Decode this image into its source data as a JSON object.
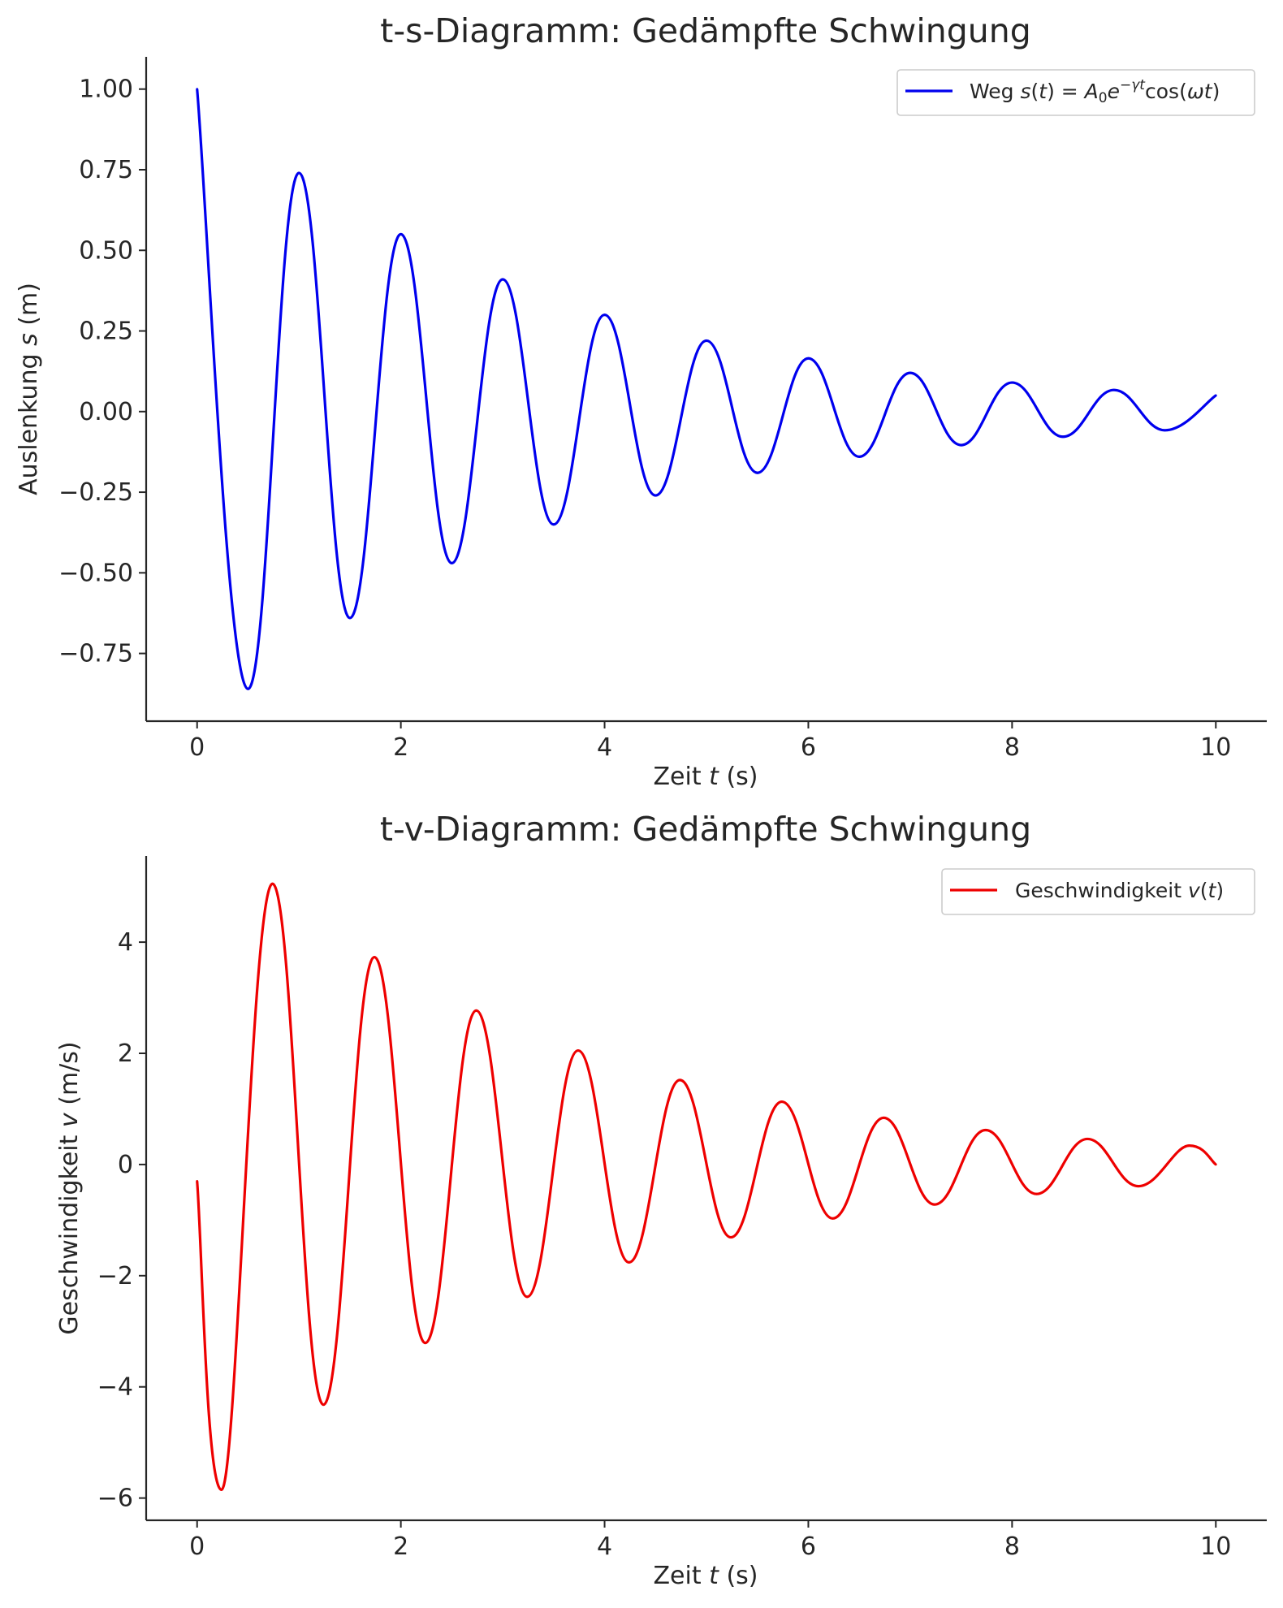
{
  "chart_data": [
    {
      "type": "line",
      "title": "t-s-Diagramm: Gedämpfte Schwingung",
      "xlabel_prefix": "Zeit ",
      "xlabel_var": "t",
      "xlabel_suffix": " (s)",
      "ylabel_prefix": "Auslenkung ",
      "ylabel_var": "s",
      "ylabel_suffix": " (m)",
      "xlim": [
        -0.5,
        10.5
      ],
      "ylim": [
        -0.96,
        1.1
      ],
      "xticks": [
        0,
        2,
        4,
        6,
        8,
        10
      ],
      "xtick_labels": [
        "0",
        "2",
        "4",
        "6",
        "8",
        "10"
      ],
      "yticks": [
        1.0,
        0.75,
        0.5,
        0.25,
        0.0,
        -0.25,
        -0.5,
        -0.75
      ],
      "ytick_labels": [
        "1.00",
        "0.75",
        "0.50",
        "0.25",
        "0.00",
        "−0.25",
        "−0.50",
        "−0.75"
      ],
      "grid": false,
      "legend_position": "top-right",
      "series": [
        {
          "name": "Weg s(t) = A0e−γtcos(ωt)",
          "legend_parts": {
            "prefix": "Weg ",
            "s": "s",
            "open": "(",
            "t": "t",
            "close": ")",
            "eq": " = ",
            "A": "A",
            "sub0": "0",
            "e": "e",
            "exp": "−γt",
            "cos": "cos",
            "open2": "(",
            "omega_t": "ωt",
            "close2": ")"
          },
          "color": "#0000ee",
          "x": [
            0,
            0.5,
            1,
            1.5,
            2,
            2.5,
            3,
            3.5,
            4,
            4.5,
            5,
            5.5,
            6,
            6.5,
            7,
            7.5,
            8,
            8.5,
            9,
            9.5,
            10
          ],
          "values": [
            1.0,
            -0.86,
            0.74,
            -0.64,
            0.55,
            -0.47,
            0.41,
            -0.35,
            0.3,
            -0.26,
            0.22,
            -0.19,
            0.165,
            -0.14,
            0.12,
            -0.104,
            0.09,
            -0.078,
            0.067,
            -0.058,
            0.05
          ]
        }
      ]
    },
    {
      "type": "line",
      "title": "t-v-Diagramm: Gedämpfte Schwingung",
      "xlabel_prefix": "Zeit ",
      "xlabel_var": "t",
      "xlabel_suffix": " (s)",
      "ylabel_prefix": "Geschwindigkeit ",
      "ylabel_var": "v",
      "ylabel_suffix": " (m/s)",
      "xlim": [
        -0.5,
        10.5
      ],
      "ylim": [
        -6.4,
        5.55
      ],
      "xticks": [
        0,
        2,
        4,
        6,
        8,
        10
      ],
      "xtick_labels": [
        "0",
        "2",
        "4",
        "6",
        "8",
        "10"
      ],
      "yticks": [
        4,
        2,
        0,
        -2,
        -4,
        -6
      ],
      "ytick_labels": [
        "4",
        "2",
        "0",
        "−2",
        "−4",
        "−6"
      ],
      "grid": false,
      "legend_position": "top-right",
      "series": [
        {
          "name": "Geschwindigkeit v(t)",
          "legend_parts": {
            "prefix": "Geschwindigkeit ",
            "v": "v",
            "open": "(",
            "t": "t",
            "close": ")"
          },
          "color": "#ee0000",
          "x": [
            0,
            0.24,
            0.74,
            1.24,
            1.74,
            2.24,
            2.74,
            3.24,
            3.74,
            4.24,
            4.74,
            5.24,
            5.74,
            6.24,
            6.74,
            7.24,
            7.74,
            8.24,
            8.74,
            9.24,
            9.74,
            10
          ],
          "values": [
            -0.3,
            -5.85,
            5.05,
            -4.32,
            3.73,
            -3.21,
            2.77,
            -2.38,
            2.05,
            -1.76,
            1.52,
            -1.31,
            1.13,
            -0.97,
            0.84,
            -0.72,
            0.62,
            -0.53,
            0.46,
            -0.39,
            0.34,
            0.0
          ]
        }
      ]
    }
  ]
}
